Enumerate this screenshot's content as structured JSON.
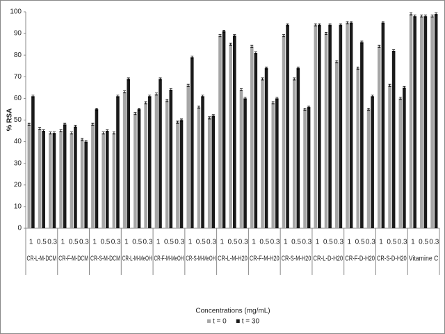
{
  "chart_data": {
    "type": "bar",
    "y_label": "% RSA",
    "x_label": "Concentrations (mg/mL)",
    "groups": [
      "CR-L-M-DCM",
      "CR-F-M-DCM",
      "CR-S-M-DCM",
      "CR-L-M-MeOH",
      "CR-F-M-MeOH",
      "CR-S-M-MeOH",
      "CR-L-M-H20",
      "CR-F-M-H20",
      "CR-S-M-H20",
      "CR-L-D-H20",
      "CR-F-D-H20",
      "CR-S-D-H20",
      "Vitamine C"
    ],
    "categories": [
      "1",
      "0.5",
      "0.3",
      "1",
      "0.5",
      "0.3",
      "1",
      "0.5",
      "0.3",
      "1",
      "0.5",
      "0.3",
      "1",
      "0.5",
      "0.3",
      "1",
      "0.5",
      "0.3",
      "1",
      "0.5",
      "0.3",
      "1",
      "0.5",
      "0.3",
      "1",
      "0.5",
      "0.3",
      "1",
      "0.5",
      "0.3",
      "1",
      "0.5",
      "0.3",
      "1",
      "0.5",
      "0.3",
      "1",
      "0.5",
      "0.3"
    ],
    "series": [
      {
        "name": "t = 0",
        "color": "#a6a6a6",
        "values": [
          48,
          46,
          44,
          45,
          44,
          41,
          48,
          44,
          44,
          63,
          53,
          58,
          62,
          59,
          49,
          66,
          56,
          51,
          89,
          85,
          64,
          84,
          69,
          58,
          89,
          69,
          55,
          94,
          90,
          77,
          95,
          74,
          55,
          84,
          66,
          60,
          99,
          98,
          98
        ],
        "errors": [
          0.5,
          0.5,
          0.5,
          0.5,
          0.5,
          0.5,
          0.5,
          0.5,
          0.5,
          0.5,
          0.5,
          0.5,
          0.5,
          0.5,
          0.5,
          0.5,
          0.5,
          0.5,
          0.5,
          0.5,
          0.5,
          0.5,
          0.5,
          0.5,
          0.5,
          0.5,
          0.5,
          0.5,
          0.5,
          0.5,
          0.5,
          0.5,
          0.5,
          0.5,
          0.5,
          0.5,
          0.5,
          0.5,
          0.5
        ]
      },
      {
        "name": "t = 30",
        "color": "#1a1a1a",
        "values": [
          61,
          45,
          44,
          48,
          47,
          40,
          55,
          45,
          61,
          69,
          55,
          61,
          69,
          64,
          50,
          79,
          61,
          52,
          91,
          89,
          60,
          81,
          74,
          60,
          94,
          74,
          56,
          94,
          94,
          94,
          95,
          86,
          61,
          95,
          82,
          65,
          98,
          98,
          99
        ],
        "errors": [
          0.5,
          0.5,
          0.5,
          0.5,
          0.5,
          0.5,
          0.5,
          0.5,
          0.5,
          0.5,
          0.5,
          0.5,
          0.5,
          0.5,
          0.5,
          0.5,
          0.5,
          0.5,
          0.5,
          0.5,
          0.5,
          0.5,
          0.5,
          0.5,
          0.5,
          0.5,
          0.5,
          0.5,
          0.5,
          0.5,
          0.5,
          0.5,
          0.5,
          0.5,
          0.5,
          0.5,
          0.5,
          0.5,
          0.5
        ]
      }
    ],
    "ylim": [
      0,
      100
    ],
    "yticks": [
      0,
      10,
      20,
      30,
      40,
      50,
      60,
      70,
      80,
      90,
      100
    ],
    "grid": false
  }
}
